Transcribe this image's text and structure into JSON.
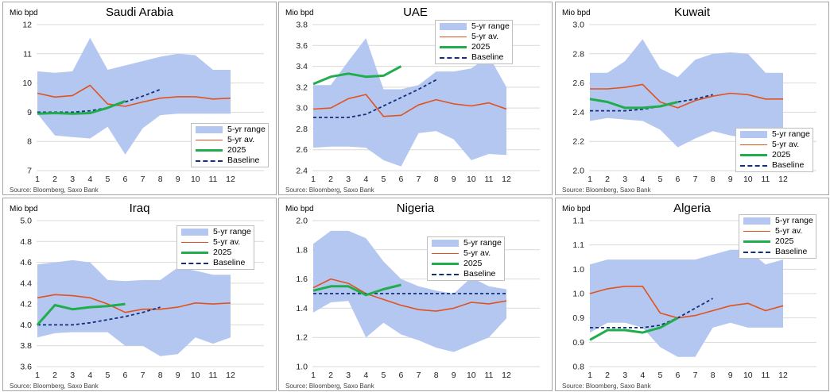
{
  "colors": {
    "range": "#b4c7f0",
    "average": "#e0531f",
    "current": "#21ad4d",
    "baseline": "#14307a",
    "grid": "#d9d9d9"
  },
  "legend_labels": {
    "range": "5-yr range",
    "average": "5-yr av.",
    "current": "2025",
    "baseline": "Baseline"
  },
  "unit_label": "Mio bpd",
  "source": "Source: Bloomberg, Saxo Bank",
  "chart_data": [
    {
      "type": "line",
      "title": "Saudi Arabia",
      "ylim": [
        7,
        12
      ],
      "yticks": [
        "7",
        "8",
        "9",
        "10",
        "11",
        "12"
      ],
      "x": [
        1,
        2,
        3,
        4,
        5,
        6,
        7,
        8,
        9,
        10,
        11,
        12
      ],
      "range_low": [
        8.95,
        8.2,
        8.15,
        8.1,
        8.5,
        7.55,
        8.45,
        8.9,
        8.95,
        8.95,
        8.95,
        8.95
      ],
      "range_high": [
        10.4,
        10.35,
        10.4,
        11.55,
        10.45,
        10.6,
        10.75,
        10.9,
        11.0,
        10.95,
        10.45,
        10.45
      ],
      "average": [
        9.65,
        9.52,
        9.57,
        9.92,
        9.28,
        9.2,
        9.35,
        9.48,
        9.53,
        9.53,
        9.45,
        9.48
      ],
      "current": [
        8.95,
        8.97,
        8.95,
        8.97,
        9.15,
        9.38
      ],
      "baseline": [
        9.0,
        9.0,
        9.0,
        9.05,
        9.15,
        9.35,
        9.55,
        9.78
      ],
      "legend_position": "bottom-right"
    },
    {
      "type": "line",
      "title": "UAE",
      "ylim": [
        2.4,
        3.8
      ],
      "yticks": [
        "2.4",
        "2.6",
        "2.8",
        "3.0",
        "3.2",
        "3.4",
        "3.6",
        "3.8"
      ],
      "x": [
        1,
        2,
        3,
        4,
        5,
        6,
        7,
        8,
        9,
        10,
        11,
        12
      ],
      "range_low": [
        2.62,
        2.63,
        2.63,
        2.62,
        2.5,
        2.44,
        2.76,
        2.78,
        2.7,
        2.5,
        2.56,
        2.55
      ],
      "range_high": [
        3.22,
        3.22,
        3.45,
        3.67,
        3.18,
        3.18,
        3.22,
        3.35,
        3.35,
        3.38,
        3.5,
        3.2
      ],
      "average": [
        2.99,
        3.0,
        3.09,
        3.13,
        2.92,
        2.93,
        3.03,
        3.08,
        3.04,
        3.02,
        3.05,
        2.99
      ],
      "current": [
        3.23,
        3.3,
        3.33,
        3.3,
        3.31,
        3.4
      ],
      "baseline": [
        2.91,
        2.91,
        2.91,
        2.94,
        3.02,
        3.1,
        3.18,
        3.27
      ],
      "legend_position": "top-right"
    },
    {
      "type": "line",
      "title": "Kuwait",
      "ylim": [
        2.0,
        3.0
      ],
      "yticks": [
        "2.0",
        "2.2",
        "2.4",
        "2.6",
        "2.8",
        "3.0"
      ],
      "x": [
        1,
        2,
        3,
        4,
        5,
        6,
        7,
        8,
        9,
        10,
        11,
        12
      ],
      "range_low": [
        2.34,
        2.36,
        2.35,
        2.34,
        2.28,
        2.16,
        2.22,
        2.27,
        2.24,
        2.22,
        2.26,
        2.28
      ],
      "range_high": [
        2.67,
        2.67,
        2.75,
        2.9,
        2.7,
        2.64,
        2.76,
        2.8,
        2.81,
        2.8,
        2.67,
        2.67
      ],
      "average": [
        2.56,
        2.56,
        2.57,
        2.59,
        2.47,
        2.43,
        2.48,
        2.51,
        2.53,
        2.52,
        2.49,
        2.49
      ],
      "current": [
        2.49,
        2.47,
        2.43,
        2.43,
        2.44,
        2.47
      ],
      "baseline": [
        2.41,
        2.41,
        2.41,
        2.42,
        2.44,
        2.47,
        2.49,
        2.52
      ],
      "legend_position": "bottom-right"
    },
    {
      "type": "line",
      "title": "Iraq",
      "ylim": [
        3.6,
        5.0
      ],
      "yticks": [
        "3.6",
        "3.8",
        "4.0",
        "4.2",
        "4.4",
        "4.6",
        "4.8",
        "5.0"
      ],
      "x": [
        1,
        2,
        3,
        4,
        5,
        6,
        7,
        8,
        9,
        10,
        11,
        12
      ],
      "range_low": [
        3.88,
        3.92,
        3.93,
        3.93,
        3.93,
        3.8,
        3.8,
        3.7,
        3.72,
        3.88,
        3.82,
        3.88
      ],
      "range_high": [
        4.58,
        4.6,
        4.62,
        4.6,
        4.43,
        4.42,
        4.43,
        4.43,
        4.55,
        4.52,
        4.48,
        4.48
      ],
      "average": [
        4.26,
        4.29,
        4.28,
        4.26,
        4.2,
        4.12,
        4.15,
        4.15,
        4.17,
        4.21,
        4.2,
        4.21
      ],
      "current": [
        4.0,
        4.19,
        4.15,
        4.17,
        4.18,
        4.2
      ],
      "baseline": [
        4.0,
        4.0,
        4.0,
        4.02,
        4.05,
        4.08,
        4.12,
        4.17
      ],
      "legend_position": "top-right"
    },
    {
      "type": "line",
      "title": "Nigeria",
      "ylim": [
        1.0,
        2.0
      ],
      "yticks": [
        "1.0",
        "1.2",
        "1.4",
        "1.6",
        "1.8",
        "2.0"
      ],
      "x": [
        1,
        2,
        3,
        4,
        5,
        6,
        7,
        8,
        9,
        10,
        11,
        12
      ],
      "range_low": [
        1.37,
        1.44,
        1.45,
        1.2,
        1.3,
        1.22,
        1.18,
        1.13,
        1.1,
        1.15,
        1.2,
        1.33
      ],
      "range_high": [
        1.84,
        1.93,
        1.93,
        1.88,
        1.72,
        1.6,
        1.55,
        1.52,
        1.5,
        1.61,
        1.55,
        1.53
      ],
      "average": [
        1.54,
        1.6,
        1.57,
        1.5,
        1.46,
        1.42,
        1.39,
        1.38,
        1.4,
        1.44,
        1.43,
        1.45
      ],
      "current": [
        1.52,
        1.55,
        1.55,
        1.49,
        1.53,
        1.56
      ],
      "baseline": [
        1.5,
        1.5,
        1.5,
        1.5,
        1.5,
        1.5,
        1.5,
        1.5,
        1.5,
        1.5,
        1.5,
        1.5
      ],
      "legend_position": "top-right"
    },
    {
      "type": "line",
      "title": "Algeria",
      "ylim": [
        0.8,
        1.1
      ],
      "yticks": [
        "0.8",
        "0.9",
        "0.9",
        "1.0",
        "1.0",
        "1.1",
        "1.1"
      ],
      "x": [
        1,
        2,
        3,
        4,
        5,
        6,
        7,
        8,
        9,
        10,
        11,
        12
      ],
      "range_low": [
        0.87,
        0.89,
        0.89,
        0.88,
        0.84,
        0.82,
        0.82,
        0.88,
        0.89,
        0.88,
        0.88,
        0.88
      ],
      "range_high": [
        1.01,
        1.02,
        1.02,
        1.02,
        1.02,
        1.02,
        1.02,
        1.03,
        1.04,
        1.04,
        1.01,
        1.02
      ],
      "average": [
        0.95,
        0.96,
        0.965,
        0.965,
        0.91,
        0.9,
        0.905,
        0.915,
        0.925,
        0.93,
        0.915,
        0.925
      ],
      "current": [
        0.855,
        0.875,
        0.875,
        0.87,
        0.88,
        0.9
      ],
      "baseline": [
        0.88,
        0.88,
        0.88,
        0.88,
        0.885,
        0.9,
        0.92,
        0.94
      ],
      "legend_position": "top-right"
    }
  ]
}
